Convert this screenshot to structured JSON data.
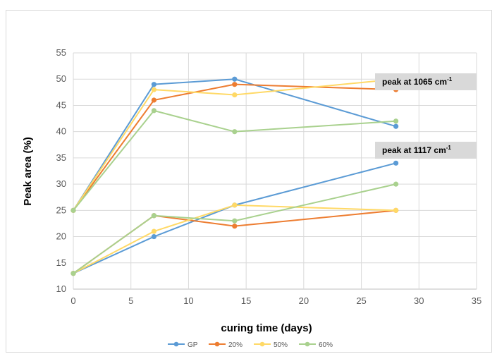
{
  "chart_data": {
    "type": "line",
    "title": "",
    "xlabel": "curing time (days)",
    "ylabel": "Peak area (%)",
    "xlim": [
      0,
      35
    ],
    "ylim": [
      10,
      55
    ],
    "xticks": [
      "0",
      "5",
      "10",
      "15",
      "20",
      "25",
      "30",
      "35"
    ],
    "yticks": [
      "10",
      "15",
      "20",
      "25",
      "30",
      "35",
      "40",
      "45",
      "50",
      "55"
    ],
    "grid": true,
    "legend_position": "bottom",
    "annotations": [
      {
        "text": "peak at 1065 cm",
        "sup": "-1"
      },
      {
        "text": "peak at 1117 cm",
        "sup": "-1"
      }
    ],
    "series": [
      {
        "name": "GP",
        "color": "#5b9bd5",
        "group": "1065",
        "x": [
          0,
          7,
          14,
          28
        ],
        "y": [
          25,
          49,
          50,
          41
        ]
      },
      {
        "name": "20%",
        "color": "#ed7d31",
        "group": "1065",
        "x": [
          0,
          7,
          14,
          28
        ],
        "y": [
          25,
          46,
          49,
          48
        ]
      },
      {
        "name": "50%",
        "color": "#ffd966",
        "group": "1065",
        "x": [
          0,
          7,
          14,
          28
        ],
        "y": [
          25,
          48,
          47,
          50
        ]
      },
      {
        "name": "60%",
        "color": "#a9d18e",
        "group": "1065",
        "x": [
          0,
          7,
          14,
          28
        ],
        "y": [
          25,
          44,
          40,
          42
        ]
      },
      {
        "name": "GP",
        "color": "#5b9bd5",
        "group": "1117",
        "x": [
          0,
          7,
          14,
          28
        ],
        "y": [
          13,
          20,
          26,
          34
        ]
      },
      {
        "name": "20%",
        "color": "#ed7d31",
        "group": "1117",
        "x": [
          0,
          7,
          14,
          28
        ],
        "y": [
          13,
          24,
          22,
          25
        ]
      },
      {
        "name": "50%",
        "color": "#ffd966",
        "group": "1117",
        "x": [
          0,
          7,
          14,
          28
        ],
        "y": [
          13,
          21,
          26,
          25
        ]
      },
      {
        "name": "60%",
        "color": "#a9d18e",
        "group": "1117",
        "x": [
          0,
          7,
          14,
          28
        ],
        "y": [
          13,
          24,
          23,
          30
        ]
      }
    ],
    "legend": [
      {
        "name": "GP",
        "color": "#5b9bd5"
      },
      {
        "name": "20%",
        "color": "#ed7d31"
      },
      {
        "name": "50%",
        "color": "#ffd966"
      },
      {
        "name": "60%",
        "color": "#a9d18e"
      }
    ]
  }
}
